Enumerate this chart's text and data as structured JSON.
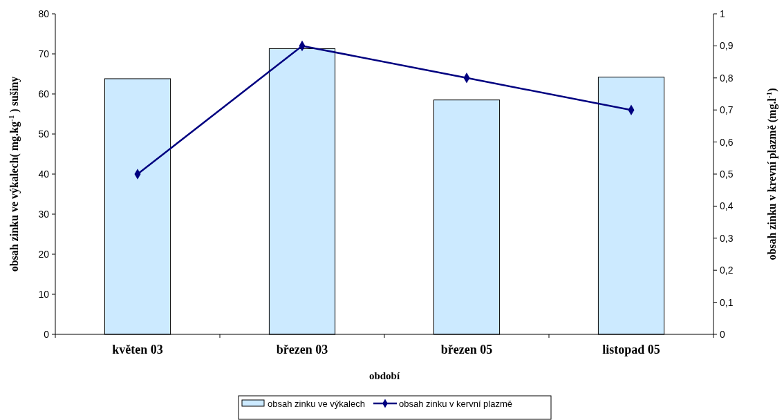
{
  "chart_data": {
    "type": "bar",
    "categories": [
      "květen 03",
      "březen 03",
      "březen 05",
      "listopad 05"
    ],
    "xlabel": "období",
    "ylabel": "obsah zinku ve výkalech( mg.kg$^{-1}$ ) sušiny",
    "y2label": "obsah zinku v krevní plazmě (mg.l$^{-1}$)",
    "series": [
      {
        "name": "obsah zinku ve výkalech",
        "color": "#cceaff",
        "values": [
          63.8,
          71.3,
          58.5,
          64.2
        ]
      },
      {
        "name": "obsah zinku v kervní plazmě",
        "type": "line",
        "axis": "y2",
        "color": "#000080",
        "values": [
          0.5,
          0.9,
          0.8,
          0.7
        ]
      }
    ],
    "ylim": [
      0,
      80
    ],
    "yticks": [
      0,
      10,
      20,
      30,
      40,
      50,
      60,
      70,
      80
    ],
    "y2lim": [
      0,
      1
    ],
    "y2ticks": [
      0,
      {
        "value": 0.1,
        "label": "0,1"
      },
      {
        "value": 0.2,
        "label": "0,2"
      },
      {
        "value": 0.3,
        "label": "0,3"
      },
      {
        "value": 0.4,
        "label": "0,4"
      },
      {
        "value": 0.5,
        "label": "0,5"
      },
      {
        "value": 0.6,
        "label": "0,6"
      },
      {
        "value": 0.7,
        "label": "0,7"
      },
      {
        "value": 0.8,
        "label": "0,8"
      },
      {
        "value": 0.9,
        "label": "0,9"
      },
      1
    ],
    "marker": "diamond",
    "legend": "bottom"
  }
}
